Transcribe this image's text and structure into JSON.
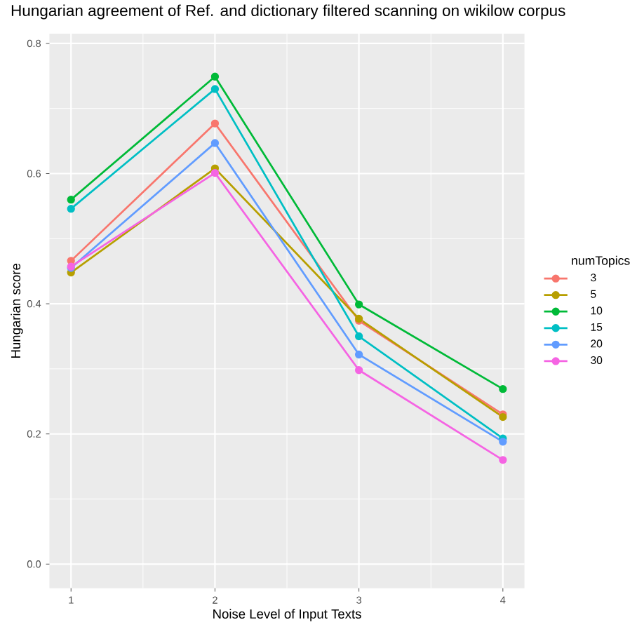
{
  "chart_data": {
    "type": "line",
    "title": "Hungarian agreement of Ref. and dictionary filtered scanning on wikilow corpus",
    "xlabel": "Noise Level of Input Texts",
    "ylabel": "Hungarian score",
    "legend_title": "numTopics",
    "x": [
      1,
      2,
      3,
      4
    ],
    "series": [
      {
        "name": "3",
        "color": "#F8766D",
        "values": [
          0.466,
          0.677,
          0.374,
          0.23
        ]
      },
      {
        "name": "5",
        "color": "#B79F00",
        "values": [
          0.448,
          0.608,
          0.377,
          0.226
        ]
      },
      {
        "name": "10",
        "color": "#00BA38",
        "values": [
          0.56,
          0.749,
          0.399,
          0.269
        ]
      },
      {
        "name": "15",
        "color": "#00BFC4",
        "values": [
          0.546,
          0.73,
          0.35,
          0.193
        ]
      },
      {
        "name": "20",
        "color": "#619CFF",
        "values": [
          0.455,
          0.647,
          0.322,
          0.188
        ]
      },
      {
        "name": "30",
        "color": "#F564E3",
        "values": [
          0.457,
          0.601,
          0.298,
          0.16
        ]
      }
    ],
    "xlim": [
      0.85,
      4.15
    ],
    "ylim": [
      -0.037,
      0.815
    ],
    "xticks": [
      1,
      2,
      3,
      4
    ],
    "yticks": [
      {
        "value": 0,
        "label": "0.0"
      },
      0.2,
      0.4,
      0.6,
      0.8
    ],
    "grid": true,
    "legend": "right",
    "marker": "circle",
    "line_style": "solid"
  }
}
